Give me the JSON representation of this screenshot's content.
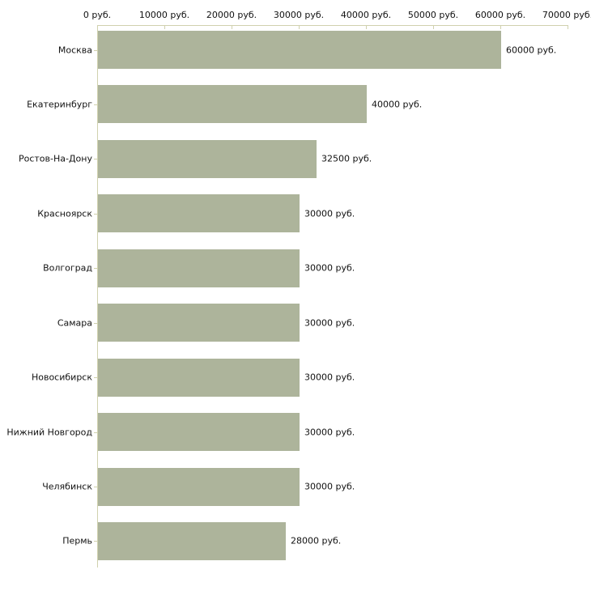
{
  "chart_data": {
    "type": "bar",
    "orientation": "horizontal",
    "title": "",
    "xlabel": "",
    "ylabel": "",
    "grid": false,
    "legend": null,
    "categories": [
      "Москва",
      "Екатеринбург",
      "Ростов-На-Дону",
      "Красноярск",
      "Волгоград",
      "Самара",
      "Новосибирск",
      "Нижний Новгород",
      "Челябинск",
      "Пермь"
    ],
    "values": [
      60000,
      40000,
      32500,
      30000,
      30000,
      30000,
      30000,
      30000,
      30000,
      28000
    ],
    "value_labels": [
      "60000 руб.",
      "40000 руб.",
      "32500 руб.",
      "30000 руб.",
      "30000 руб.",
      "30000 руб.",
      "30000 руб.",
      "30000 руб.",
      "30000 руб.",
      "28000 руб."
    ],
    "x_ticks": [
      0,
      10000,
      20000,
      30000,
      40000,
      50000,
      60000,
      70000
    ],
    "x_tick_labels": [
      "0 руб.",
      "10000 руб.",
      "20000 руб.",
      "30000 руб.",
      "40000 руб.",
      "50000 руб.",
      "60000 руб.",
      "70000 руб."
    ],
    "xlim": [
      0,
      70000
    ],
    "colors": {
      "bar": "#adb49b",
      "axis": "#d0d1ae",
      "text": "#111111",
      "background": "#ffffff"
    }
  }
}
